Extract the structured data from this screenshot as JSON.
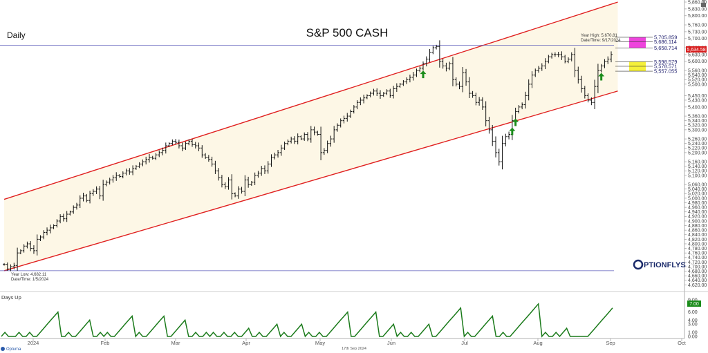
{
  "chart_data": [
    {
      "type": "ohlc",
      "title": "S&P 500 CASH",
      "timeframe_label": "Daily",
      "ylim": [
        4600,
        5860
      ],
      "yticks": [
        4620,
        4640,
        4660,
        4680,
        4700,
        4720,
        4740,
        4760,
        4780,
        4800,
        4820,
        4840,
        4860,
        4880,
        4900,
        4920,
        4940,
        4960,
        4980,
        5000,
        5020,
        5040,
        5060,
        5100,
        5120,
        5140,
        5160,
        5200,
        5220,
        5240,
        5260,
        5300,
        5320,
        5340,
        5360,
        5400,
        5430,
        5450,
        5500,
        5520,
        5540,
        5560,
        5600,
        5630,
        5660,
        5700,
        5730,
        5760,
        5800,
        5830,
        5860
      ],
      "x_labels": [
        "2024",
        "Feb",
        "Mar",
        "Apr",
        "May",
        "Jun",
        "Jul",
        "Aug",
        "Sep",
        "Oct"
      ],
      "closes": [
        4710,
        4690,
        4700,
        4705,
        4760,
        4770,
        4790,
        4800,
        4780,
        4770,
        4820,
        4830,
        4850,
        4860,
        4870,
        4880,
        4900,
        4920,
        4910,
        4930,
        4940,
        4960,
        4970,
        5000,
        5010,
        4990,
        5020,
        5030,
        5040,
        5010,
        5060,
        5070,
        5080,
        5090,
        5100,
        5095,
        5110,
        5120,
        5115,
        5130,
        5140,
        5150,
        5160,
        5170,
        5180,
        5175,
        5190,
        5200,
        5210,
        5230,
        5240,
        5250,
        5245,
        5230,
        5220,
        5240,
        5250,
        5235,
        5230,
        5220,
        5190,
        5180,
        5170,
        5150,
        5120,
        5090,
        5060,
        5050,
        5080,
        5020,
        5010,
        5040,
        5030,
        5080,
        5060,
        5070,
        5100,
        5110,
        5130,
        5120,
        5150,
        5180,
        5190,
        5200,
        5220,
        5240,
        5250,
        5260,
        5250,
        5270,
        5260,
        5280,
        5260,
        5300,
        5290,
        5280,
        5200,
        5210,
        5240,
        5260,
        5300,
        5320,
        5340,
        5350,
        5360,
        5380,
        5400,
        5420,
        5430,
        5440,
        5450,
        5460,
        5470,
        5460,
        5450,
        5460,
        5470,
        5450,
        5480,
        5490,
        5500,
        5510,
        5520,
        5530,
        5540,
        5560,
        5570,
        5590,
        5610,
        5640,
        5660,
        5665,
        5600,
        5580,
        5570,
        5590,
        5520,
        5500,
        5490,
        5550,
        5510,
        5460,
        5450,
        5420,
        5430,
        5400,
        5340,
        5300,
        5250,
        5200,
        5160,
        5240,
        5270,
        5280,
        5340,
        5380,
        5400,
        5410,
        5450,
        5500,
        5540,
        5560,
        5570,
        5580,
        5600,
        5620,
        5630,
        5630,
        5630,
        5620,
        5600,
        5610,
        5630,
        5560,
        5520,
        5480,
        5450,
        5430,
        5420,
        5490,
        5560,
        5580,
        5600,
        5610,
        5630
      ],
      "channel": {
        "upper": [
          [
            0,
            4995
          ],
          [
            186,
            5860
          ]
        ],
        "lower": [
          [
            0,
            4682
          ],
          [
            186,
            5470
          ]
        ]
      },
      "year_high_label": "Year High: 5,670.81",
      "year_high_date": "Date/Time: 9/17/2024",
      "year_high": 5670.81,
      "year_low_label": "Year Low: 4,682.11",
      "year_low_date": "Date/Time: 1/5/2024",
      "year_low": 4682.11,
      "last_price": "5,634.58",
      "upper_levels": [
        "5,705.859",
        "5,686.114",
        "5,658.714"
      ],
      "lower_levels": [
        "5,598.579",
        "5,578.571",
        "5,557.055"
      ],
      "upper_zone_color": "#ee44dd",
      "lower_zone_color": "#f5f03a",
      "channel_color": "#e02020",
      "signal_arrows_color": "#1a8c1a",
      "signal_arrow_bars": [
        127,
        154,
        155,
        181
      ]
    },
    {
      "type": "line",
      "title": "Days Up",
      "ylim": [
        0,
        9
      ],
      "yticks": [
        "9.00",
        "8.00",
        "6.00",
        "4.00",
        "3.00",
        "1.00",
        "0.00"
      ],
      "last_value": "7.00",
      "color": "#1a7a1a",
      "values": [
        0,
        1,
        0,
        0,
        0,
        1,
        0,
        0,
        1,
        0,
        0,
        1,
        2,
        3,
        4,
        5,
        6,
        0,
        0,
        1,
        0,
        0,
        1,
        2,
        3,
        4,
        0,
        0,
        1,
        0,
        1,
        0,
        0,
        1,
        2,
        3,
        4,
        5,
        0,
        1,
        0,
        0,
        1,
        2,
        3,
        4,
        5,
        0,
        0,
        1,
        2,
        3,
        4,
        0,
        0,
        1,
        0,
        0,
        1,
        0,
        1,
        0,
        0,
        1,
        0,
        0,
        1,
        0,
        0,
        1,
        2,
        0,
        0,
        1,
        0,
        0,
        1,
        2,
        3,
        0,
        1,
        0,
        0,
        1,
        2,
        3,
        0,
        1,
        0,
        0,
        1,
        0,
        0,
        1,
        2,
        3,
        4,
        5,
        6,
        0,
        0,
        1,
        2,
        3,
        4,
        5,
        6,
        0,
        0,
        1,
        2,
        3,
        0,
        1,
        0,
        0,
        1,
        0,
        0,
        1,
        2,
        3,
        0,
        0,
        1,
        2,
        3,
        4,
        5,
        6,
        7,
        0,
        1,
        0,
        0,
        1,
        2,
        3,
        4,
        5,
        0,
        0,
        1,
        0,
        0,
        1,
        2,
        3,
        4,
        5,
        6,
        7,
        8,
        0,
        1,
        0,
        0,
        1,
        0,
        1,
        2,
        0,
        0,
        0,
        0,
        0,
        0,
        1,
        2,
        3,
        4,
        5,
        6,
        7
      ]
    }
  ],
  "footer": {
    "logo_text": "Optuma",
    "date_text": "17th Sep 2024",
    "brand_text": "PTIONFLYS"
  },
  "colors": {
    "price_bar": "#111111",
    "year_line": "#5a5ab8",
    "axis_bg_last": "#d81e1e",
    "days_up_last_bg": "#1a8c1a"
  }
}
